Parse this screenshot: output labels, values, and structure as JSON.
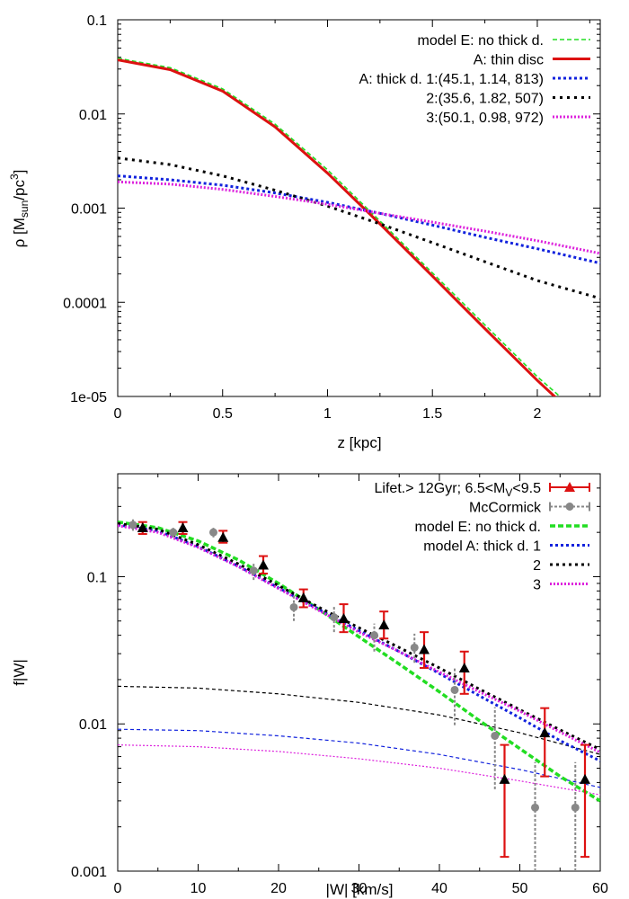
{
  "chart_data": [
    {
      "type": "line",
      "xlabel": "z [kpc]",
      "ylabel": "ρ [M_sun/pc^3]",
      "ylabel_parts": {
        "main": "ρ [M",
        "sub1": "sun",
        "mid": "/pc",
        "sup": "3",
        "end": "]"
      },
      "xlim": [
        0,
        2.3
      ],
      "ylim": [
        1e-05,
        0.1
      ],
      "yscale": "log",
      "x_ticks": [
        0,
        0.5,
        1,
        1.5,
        2
      ],
      "x_tick_labels": [
        "0",
        "0.5",
        "1",
        "1.5",
        "2"
      ],
      "y_ticks": [
        0.1,
        0.01,
        0.001,
        0.0001,
        1e-05
      ],
      "y_tick_labels": [
        "0.1",
        "0.01",
        "0.001",
        "0.0001",
        "1e-05"
      ],
      "legend_position": "top-right",
      "series": [
        {
          "name": "model E: no thick d.",
          "color": "#22dd22",
          "dash": "5,3",
          "width": 1.6,
          "x": [
            0,
            0.25,
            0.5,
            0.75,
            1.0,
            1.25,
            1.5,
            1.75,
            2.0,
            2.2
          ],
          "y": [
            0.039,
            0.031,
            0.0185,
            0.0078,
            0.00255,
            0.00073,
            0.000205,
            5.75e-05,
            1.62e-05,
            6.6e-06
          ]
        },
        {
          "name": "A:    thin disc",
          "color": "#dd1111",
          "dash": "",
          "width": 3,
          "x": [
            0,
            0.25,
            0.5,
            0.75,
            1.0,
            1.25,
            1.5,
            1.75,
            2.0,
            2.17
          ],
          "y": [
            0.0375,
            0.0295,
            0.0175,
            0.0073,
            0.00235,
            0.00068,
            0.00019,
            5.25e-05,
            1.48e-05,
            6.6e-06
          ]
        },
        {
          "name": "A: thick d. 1:(45.1, 1.14, 813)",
          "color": "#1122dd",
          "dash": "3,3",
          "width": 3,
          "x": [
            0,
            0.25,
            0.5,
            0.75,
            1.0,
            1.25,
            1.5,
            1.75,
            2.0,
            2.3
          ],
          "y": [
            0.0022,
            0.002,
            0.00175,
            0.00145,
            0.00115,
            0.00088,
            0.00066,
            0.00049,
            0.00037,
            0.00026
          ]
        },
        {
          "name": "2:(35.6, 1.82, 507)",
          "color": "#000000",
          "dash": "3,5",
          "width": 3,
          "x": [
            0,
            0.25,
            0.5,
            0.75,
            1.0,
            1.25,
            1.5,
            1.75,
            2.0,
            2.3
          ],
          "y": [
            0.0034,
            0.0029,
            0.0022,
            0.00155,
            0.00105,
            0.00068,
            0.00043,
            0.00027,
            0.00017,
            0.00011
          ]
        },
        {
          "name": "3:(50.1, 0.98, 972)",
          "color": "#dd22dd",
          "dash": "2,2",
          "width": 3,
          "x": [
            0,
            0.25,
            0.5,
            0.75,
            1.0,
            1.25,
            1.5,
            1.75,
            2.0,
            2.3
          ],
          "y": [
            0.0019,
            0.0018,
            0.00158,
            0.00133,
            0.0011,
            0.00088,
            0.00071,
            0.00057,
            0.00045,
            0.00033
          ]
        }
      ]
    },
    {
      "type": "line",
      "xlabel": "|W| [km/s]",
      "ylabel": "f|W|",
      "xlim": [
        0,
        60
      ],
      "ylim": [
        0.001,
        0.5
      ],
      "yscale": "log",
      "x_ticks": [
        0,
        10,
        20,
        30,
        40,
        50,
        60
      ],
      "x_tick_labels": [
        "0",
        "10",
        "20",
        "30",
        "40",
        "50",
        "60"
      ],
      "y_ticks": [
        0.1,
        0.01,
        0.001
      ],
      "y_tick_labels": [
        "0.1",
        "0.01",
        "0.001"
      ],
      "legend_position": "top-right",
      "legend_first_parts": {
        "main": "Lifet.> 12Gyr;  6.5<M",
        "sub": "V",
        "end": "<9.5"
      },
      "points": [
        {
          "name": "Lifet.> 12Gyr;  6.5<M_V<9.5",
          "color": "#dd1111",
          "marker": "triangle",
          "x": [
            2.5,
            7.5,
            12.5,
            17.5,
            22.5,
            27.5,
            32.5,
            37.5,
            42.5,
            47.5,
            52.5,
            57.5
          ],
          "y": [
            0.215,
            0.215,
            0.185,
            0.12,
            0.072,
            0.052,
            0.047,
            0.032,
            0.024,
            0.0042,
            0.0087,
            0.0042
          ],
          "lo": [
            0.195,
            0.195,
            0.17,
            0.105,
            0.062,
            0.042,
            0.038,
            0.024,
            0.016,
            0.00125,
            0.0044,
            0.00125
          ],
          "hi": [
            0.235,
            0.235,
            0.205,
            0.138,
            0.082,
            0.065,
            0.058,
            0.042,
            0.031,
            0.0072,
            0.0128,
            0.0072
          ]
        },
        {
          "name": "McCormick",
          "color": "#888888",
          "marker": "circle",
          "x": [
            2.5,
            7.5,
            12.5,
            17.5,
            22.5,
            27.5,
            32.5,
            37.5,
            42.5,
            47.5,
            52.5,
            57.5
          ],
          "y": [
            0.225,
            0.2,
            0.2,
            0.11,
            0.062,
            0.053,
            0.04,
            0.033,
            0.017,
            0.0083,
            0.0027,
            0.0027
          ],
          "lo": [
            0.205,
            0.185,
            0.185,
            0.095,
            0.05,
            0.042,
            0.031,
            0.026,
            0.0098,
            0.0036,
            1e-05,
            1e-05
          ],
          "hi": [
            0.245,
            0.215,
            0.215,
            0.125,
            0.074,
            0.064,
            0.048,
            0.041,
            0.024,
            0.013,
            0.0055,
            0.0055
          ]
        }
      ],
      "series": [
        {
          "name": "model E: no thick d.",
          "color": "#22dd22",
          "dash": "6,3",
          "width": 3.5,
          "x": [
            0,
            5,
            10,
            15,
            20,
            25,
            30,
            35,
            40,
            45,
            50,
            55,
            60
          ],
          "y": [
            0.235,
            0.215,
            0.175,
            0.13,
            0.09,
            0.06,
            0.039,
            0.0255,
            0.0165,
            0.0105,
            0.0068,
            0.0044,
            0.003
          ]
        },
        {
          "name": "model A:   thick d. 1",
          "color": "#1122dd",
          "dash": "3,3",
          "width": 3,
          "x": [
            0,
            5,
            10,
            15,
            20,
            25,
            30,
            35,
            40,
            45,
            50,
            55,
            60
          ],
          "y": [
            0.225,
            0.205,
            0.16,
            0.118,
            0.084,
            0.06,
            0.043,
            0.031,
            0.022,
            0.0155,
            0.011,
            0.0077,
            0.0056
          ]
        },
        {
          "name": "2",
          "color": "#000000",
          "dash": "3,4",
          "width": 3,
          "x": [
            0,
            5,
            10,
            15,
            20,
            25,
            30,
            35,
            40,
            45,
            50,
            55,
            60
          ],
          "y": [
            0.23,
            0.21,
            0.165,
            0.122,
            0.087,
            0.062,
            0.045,
            0.033,
            0.024,
            0.0172,
            0.0125,
            0.0091,
            0.0067
          ]
        },
        {
          "name": "3",
          "color": "#dd22dd",
          "dash": "2,2",
          "width": 3,
          "x": [
            0,
            5,
            10,
            15,
            20,
            25,
            30,
            35,
            40,
            45,
            50,
            55,
            60
          ],
          "y": [
            0.222,
            0.2,
            0.158,
            0.117,
            0.083,
            0.059,
            0.042,
            0.031,
            0.0225,
            0.0165,
            0.0122,
            0.0088,
            0.0064
          ]
        }
      ],
      "unlabeled_series": [
        {
          "color": "#000000",
          "dash": "4,3",
          "width": 1.2,
          "x": [
            0,
            10,
            20,
            30,
            40,
            50,
            60
          ],
          "y": [
            0.018,
            0.0175,
            0.016,
            0.014,
            0.0115,
            0.0087,
            0.0062
          ]
        },
        {
          "color": "#1122dd",
          "dash": "4,3",
          "width": 1.2,
          "x": [
            0,
            10,
            20,
            30,
            40,
            50,
            60
          ],
          "y": [
            0.0092,
            0.009,
            0.0083,
            0.0074,
            0.0062,
            0.0049,
            0.0037
          ]
        },
        {
          "color": "#dd22dd",
          "dash": "2,2",
          "width": 1.2,
          "x": [
            0,
            10,
            20,
            30,
            40,
            50,
            60
          ],
          "y": [
            0.0072,
            0.007,
            0.0065,
            0.0058,
            0.005,
            0.0041,
            0.0033
          ]
        }
      ]
    }
  ]
}
